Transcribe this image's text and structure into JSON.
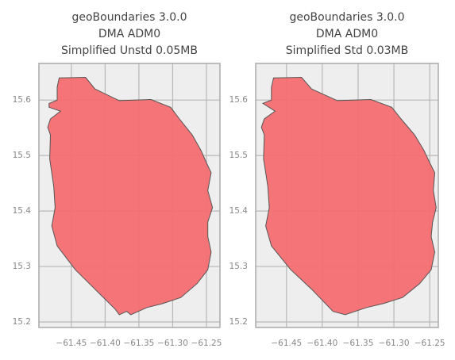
{
  "chart_data": [
    {
      "type": "map",
      "title": [
        "geoBoundaries 3.0.0",
        "DMA ADM0",
        "Simplified Unstd 0.05MB"
      ],
      "xlim": [
        -61.498,
        -61.23
      ],
      "ylim": [
        15.19,
        15.666
      ],
      "xticks": [
        {
          "value": -61.45,
          "label": "−61.45"
        },
        {
          "value": -61.4,
          "label": "−61.40"
        },
        {
          "value": -61.35,
          "label": "−61.35"
        },
        {
          "value": -61.3,
          "label": "−61.30"
        },
        {
          "value": -61.25,
          "label": "−61.25"
        }
      ],
      "yticks": [
        15.2,
        15.3,
        15.4,
        15.5,
        15.6
      ],
      "grid": true,
      "series": [
        {
          "color": "#f46d70",
          "x": [
            -61.468,
            -61.429,
            -61.415,
            -61.379,
            -61.332,
            -61.303,
            -61.29,
            -61.271,
            -61.258,
            -61.25,
            -61.243,
            -61.248,
            -61.241,
            -61.248,
            -61.248,
            -61.243,
            -61.248,
            -61.264,
            -61.288,
            -61.315,
            -61.338,
            -61.362,
            -61.368,
            -61.379,
            -61.385,
            -61.415,
            -61.444,
            -61.471,
            -61.479,
            -61.474,
            -61.476,
            -61.482,
            -61.481,
            -61.485,
            -61.481,
            -61.466,
            -61.483,
            -61.483,
            -61.471,
            -61.471
          ],
          "y": [
            15.64,
            15.641,
            15.62,
            15.599,
            15.601,
            15.587,
            15.566,
            15.537,
            15.509,
            15.487,
            15.469,
            15.437,
            15.406,
            15.38,
            15.354,
            15.326,
            15.294,
            15.269,
            15.244,
            15.233,
            15.226,
            15.213,
            15.219,
            15.213,
            15.223,
            15.259,
            15.294,
            15.337,
            15.373,
            15.406,
            15.444,
            15.494,
            15.537,
            15.551,
            15.566,
            15.58,
            15.587,
            15.594,
            15.6,
            15.623
          ]
        }
      ]
    },
    {
      "type": "map",
      "title": [
        "geoBoundaries 3.0.0",
        "DMA ADM0",
        "Simplified Std 0.03MB"
      ],
      "xlim": [
        -61.493,
        -61.238
      ],
      "ylim": [
        15.19,
        15.666
      ],
      "xticks": [
        {
          "value": -61.45,
          "label": "−61.45"
        },
        {
          "value": -61.4,
          "label": "−61.40"
        },
        {
          "value": -61.35,
          "label": "−61.35"
        },
        {
          "value": -61.3,
          "label": "−61.30"
        },
        {
          "value": -61.25,
          "label": "−61.25"
        }
      ],
      "yticks": [
        15.2,
        15.3,
        15.4,
        15.5,
        15.6
      ],
      "grid": true,
      "series": [
        {
          "color": "#f46d70",
          "x": [
            -61.468,
            -61.429,
            -61.415,
            -61.379,
            -61.332,
            -61.303,
            -61.29,
            -61.271,
            -61.258,
            -61.25,
            -61.243,
            -61.245,
            -61.241,
            -61.246,
            -61.248,
            -61.243,
            -61.248,
            -61.264,
            -61.288,
            -61.315,
            -61.338,
            -61.368,
            -61.385,
            -61.415,
            -61.444,
            -61.471,
            -61.479,
            -61.474,
            -61.476,
            -61.482,
            -61.481,
            -61.485,
            -61.481,
            -61.466,
            -61.483,
            -61.471,
            -61.471
          ],
          "y": [
            15.64,
            15.641,
            15.62,
            15.599,
            15.601,
            15.587,
            15.566,
            15.537,
            15.509,
            15.487,
            15.469,
            15.437,
            15.406,
            15.38,
            15.354,
            15.326,
            15.294,
            15.269,
            15.244,
            15.233,
            15.226,
            15.213,
            15.219,
            15.259,
            15.294,
            15.337,
            15.373,
            15.406,
            15.444,
            15.494,
            15.537,
            15.551,
            15.566,
            15.58,
            15.594,
            15.6,
            15.623
          ]
        }
      ]
    }
  ]
}
